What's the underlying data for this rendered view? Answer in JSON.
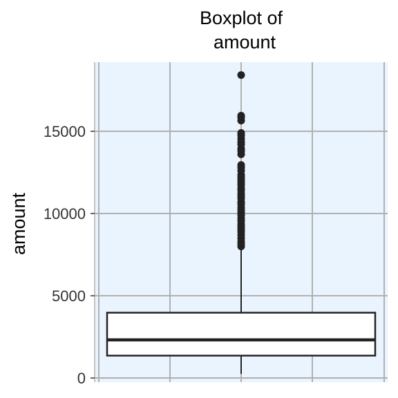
{
  "chart_data": {
    "type": "boxplot",
    "title": "Boxplot of\namount",
    "xlabel": "",
    "ylabel": "amount",
    "ylim": [
      -250,
      19200
    ],
    "yticks": [
      0,
      5000,
      10000,
      15000
    ],
    "grid": true,
    "background": "#eaf4ff",
    "series": [
      {
        "stats": {
          "min": 250,
          "q1": 1360,
          "median": 2320,
          "q3": 3970,
          "whisker_high": 7900
        },
        "outliers": [
          18420,
          15950,
          15850,
          15650,
          14900,
          14750,
          14550,
          14350,
          14200,
          13950,
          13800,
          13600,
          12950,
          12800,
          12600,
          12350,
          12200,
          12050,
          11900,
          11750,
          11550,
          11400,
          11200,
          11050,
          10900,
          10700,
          10550,
          10350,
          10200,
          10050,
          9900,
          9700,
          9550,
          9350,
          9200,
          9050,
          8900,
          8700,
          8500,
          8300,
          8150,
          8000
        ]
      }
    ]
  },
  "colors": {
    "panel": "#eaf4ff",
    "grid": "#b0b0b0",
    "box": "#222222"
  }
}
